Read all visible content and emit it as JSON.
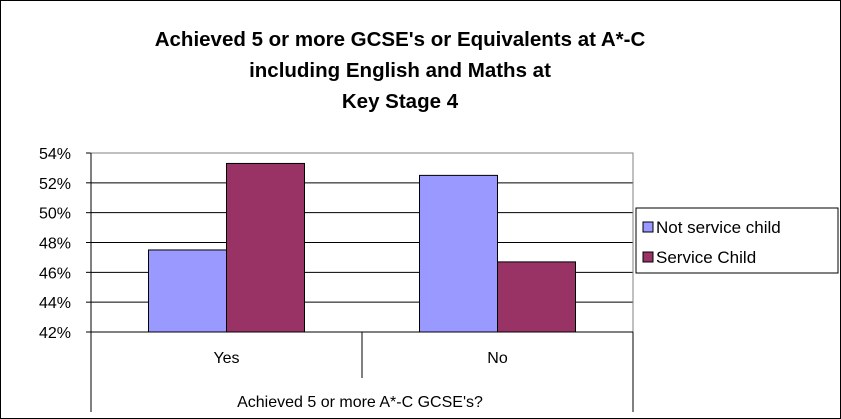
{
  "chart_data": {
    "type": "bar",
    "title_lines": [
      "Achieved 5 or more GCSE's or Equivalents at A*-C",
      "including English and Maths at",
      "Key Stage 4"
    ],
    "xlabel": "Achieved 5 or more A*-C GCSE's?",
    "ylabel": "",
    "categories": [
      "Yes",
      "No"
    ],
    "series": [
      {
        "name": "Not service child",
        "values": [
          47.5,
          52.5
        ],
        "color": "#9999ff"
      },
      {
        "name": "Service Child",
        "values": [
          53.3,
          46.7
        ],
        "color": "#993366"
      }
    ],
    "ylim": [
      42,
      54
    ],
    "yticks": [
      42,
      44,
      46,
      48,
      50,
      52,
      54
    ],
    "ytick_labels": [
      "42%",
      "44%",
      "46%",
      "48%",
      "50%",
      "52%",
      "54%"
    ],
    "grid": true,
    "plot_background": "#ffffff",
    "legend_position": "right"
  }
}
